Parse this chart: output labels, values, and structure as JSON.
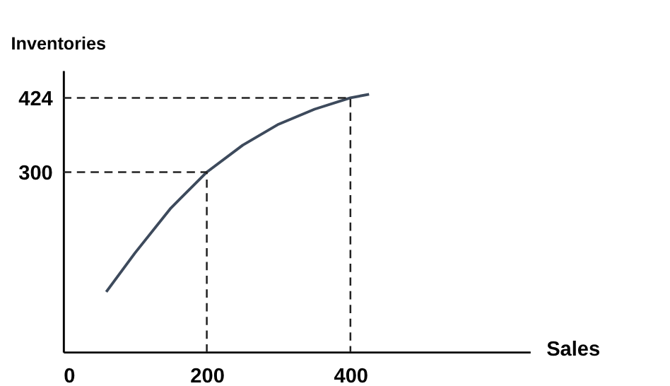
{
  "chart_data": {
    "type": "line",
    "xlabel": "Sales",
    "ylabel": "Inventories",
    "xlim": [
      0,
      650
    ],
    "ylim": [
      0,
      470
    ],
    "xticks": [
      0,
      200,
      400
    ],
    "yticks": [
      300,
      424
    ],
    "grid": false,
    "marker": "none",
    "series": [
      {
        "color": "#3d4a5c",
        "line_style": "solid",
        "x": [
          60,
          100,
          150,
          200,
          250,
          300,
          350,
          400,
          426
        ],
        "values": [
          100,
          165,
          240,
          300,
          345,
          380,
          405,
          424,
          430
        ]
      },
      {
        "color": "#222222",
        "line_style": "dashed",
        "x": [
          0,
          200,
          200
        ],
        "values": [
          300,
          300,
          0
        ]
      },
      {
        "color": "#222222",
        "line_style": "dashed",
        "x": [
          0,
          400,
          400
        ],
        "values": [
          424,
          424,
          0
        ]
      }
    ]
  }
}
